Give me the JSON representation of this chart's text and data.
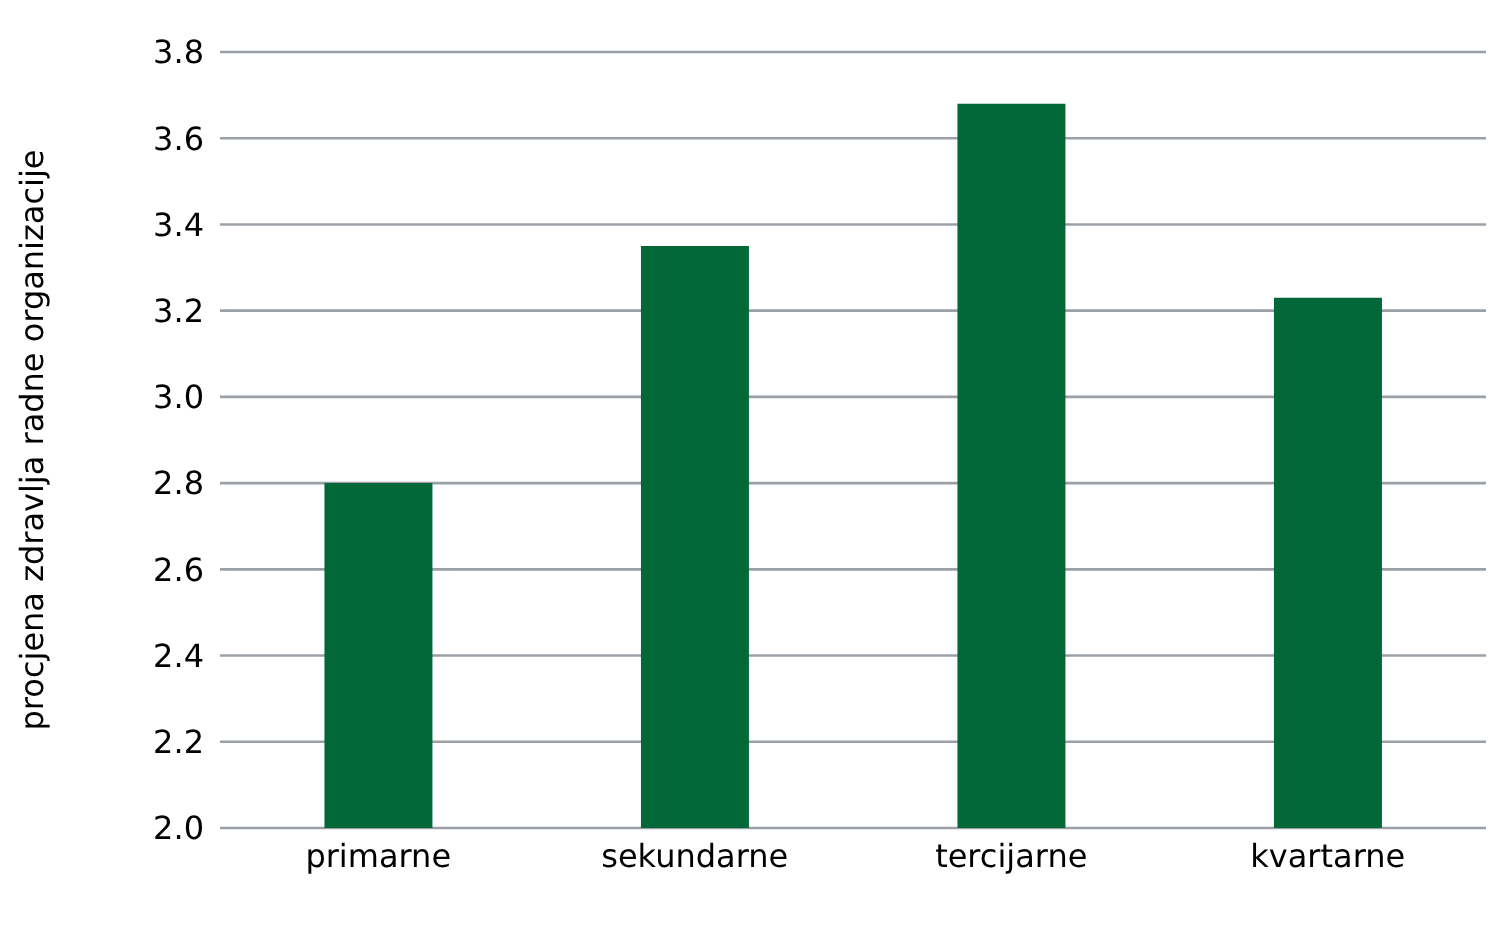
{
  "chart_data": {
    "type": "bar",
    "ylabel": "procjena zdravlja radne organizacije",
    "categories": [
      "primarne",
      "sekundarne",
      "tercijarne",
      "kvartarne"
    ],
    "values": [
      2.8,
      3.35,
      3.68,
      3.23
    ],
    "color": "#026838",
    "ylim": [
      2.0,
      3.8
    ],
    "yticks": [
      {
        "value": 2,
        "label": "2.0"
      },
      2.2,
      2.4,
      2.6,
      2.8,
      {
        "value": 3,
        "label": "3.0"
      },
      3.2,
      3.4,
      3.6,
      3.8
    ],
    "grid": "y"
  }
}
